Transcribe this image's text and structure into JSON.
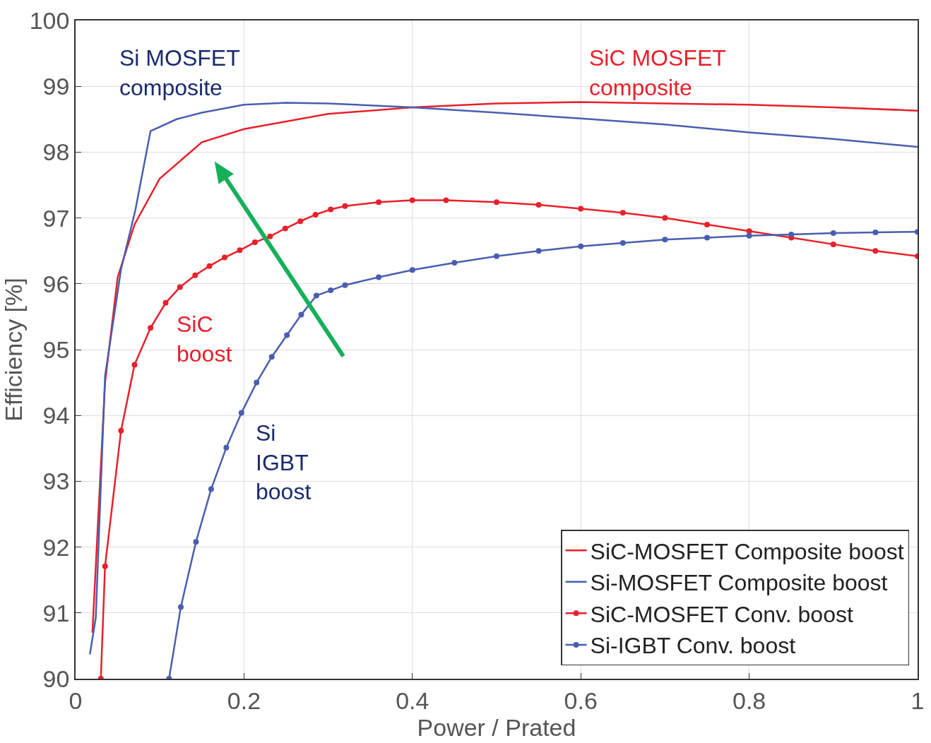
{
  "chart_data": {
    "type": "line",
    "xlabel": "Power / Prated",
    "ylabel": "Efficiency [%]",
    "xlim": [
      0,
      1
    ],
    "ylim": [
      90,
      100
    ],
    "xticks": [
      0,
      0.2,
      0.4,
      0.6,
      0.8,
      1
    ],
    "yticks": [
      90,
      91,
      92,
      93,
      94,
      95,
      96,
      97,
      98,
      99,
      100
    ],
    "grid": true,
    "legend": "bottom right",
    "line_style": "solid",
    "series": [
      {
        "name": "SiC-MOSFET Composite boost",
        "color": "#e8202a",
        "marker": "none",
        "x": [
          0.02,
          0.035,
          0.05,
          0.07,
          0.1,
          0.15,
          0.2,
          0.3,
          0.4,
          0.5,
          0.6,
          0.7,
          0.8,
          0.9,
          1.0
        ],
        "values": [
          90.7,
          94.5,
          96.1,
          96.9,
          97.6,
          98.15,
          98.35,
          98.58,
          98.68,
          98.74,
          98.76,
          98.74,
          98.72,
          98.68,
          98.63
        ]
      },
      {
        "name": "Si-MOSFET Composite boost",
        "color": "#4a5eb0",
        "marker": "none",
        "x": [
          0.017,
          0.024,
          0.035,
          0.054,
          0.071,
          0.089,
          0.12,
          0.15,
          0.2,
          0.25,
          0.3,
          0.4,
          0.5,
          0.6,
          0.7,
          0.8,
          0.9,
          1.0
        ],
        "values": [
          90.37,
          90.93,
          94.6,
          96.22,
          97.12,
          98.32,
          98.5,
          98.6,
          98.72,
          98.75,
          98.74,
          98.68,
          98.6,
          98.51,
          98.42,
          98.3,
          98.2,
          98.08
        ]
      },
      {
        "name": "SiC-MOSFET Conv. boost",
        "color": "#e8202a",
        "marker": "circle",
        "x": [
          0.03,
          0.035,
          0.054,
          0.07,
          0.089,
          0.107,
          0.124,
          0.142,
          0.159,
          0.177,
          0.195,
          0.213,
          0.231,
          0.249,
          0.267,
          0.285,
          0.303,
          0.32,
          0.36,
          0.4,
          0.44,
          0.5,
          0.55,
          0.6,
          0.65,
          0.7,
          0.75,
          0.8,
          0.85,
          0.9,
          0.95,
          1.0
        ],
        "values": [
          90.0,
          91.71,
          93.77,
          94.77,
          95.33,
          95.71,
          95.95,
          96.13,
          96.27,
          96.4,
          96.51,
          96.63,
          96.72,
          96.84,
          96.95,
          97.05,
          97.13,
          97.18,
          97.24,
          97.27,
          97.27,
          97.24,
          97.2,
          97.14,
          97.08,
          97.0,
          96.9,
          96.8,
          96.7,
          96.6,
          96.5,
          96.42
        ]
      },
      {
        "name": "Si-IGBT Conv. boost",
        "color": "#4a5eb0",
        "marker": "circle",
        "x": [
          0.111,
          0.125,
          0.143,
          0.161,
          0.179,
          0.197,
          0.215,
          0.233,
          0.251,
          0.268,
          0.286,
          0.303,
          0.32,
          0.36,
          0.4,
          0.45,
          0.5,
          0.55,
          0.6,
          0.65,
          0.7,
          0.75,
          0.8,
          0.85,
          0.9,
          0.95,
          1.0
        ],
        "values": [
          90.0,
          91.09,
          92.08,
          92.88,
          93.51,
          94.04,
          94.5,
          94.89,
          95.22,
          95.53,
          95.82,
          95.9,
          95.98,
          96.1,
          96.21,
          96.32,
          96.42,
          96.5,
          96.57,
          96.62,
          96.67,
          96.7,
          96.73,
          96.75,
          96.77,
          96.78,
          96.79
        ]
      }
    ],
    "annotations": [
      "Si MOSFET\ncomposite",
      "SiC MOSFET\ncomposite",
      "SiC\nboost",
      "Si\nIGBT\nboost"
    ]
  }
}
